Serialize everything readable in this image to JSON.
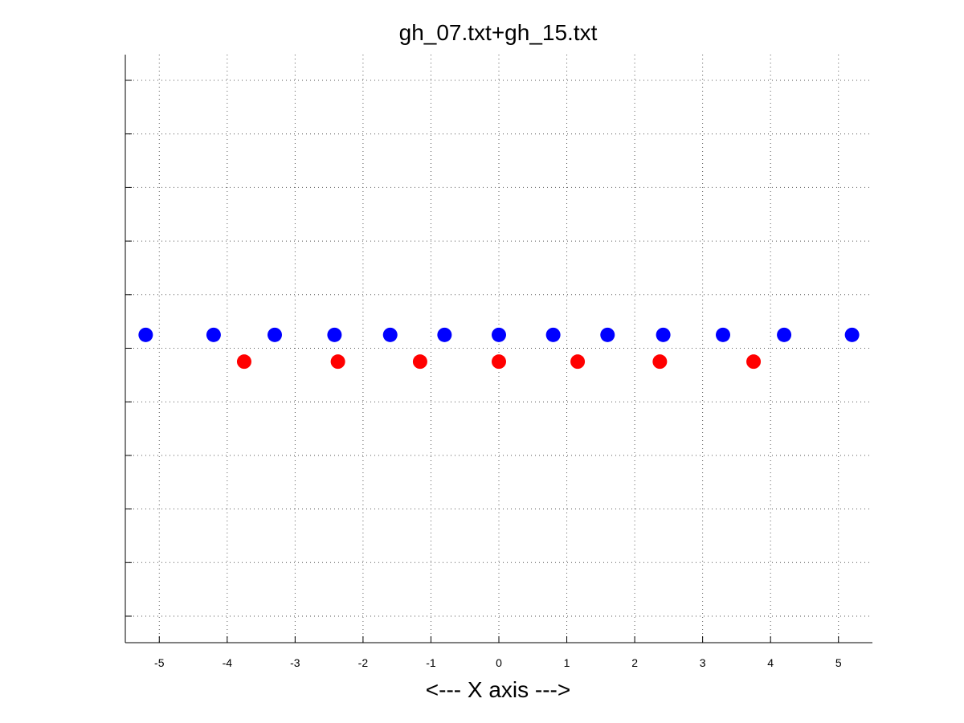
{
  "chart_data": {
    "type": "scatter",
    "title": "gh_07.txt+gh_15.txt",
    "xlabel": "<--- X axis --->",
    "ylabel": "",
    "xlim": [
      -5.5,
      5.5
    ],
    "ylim": [
      -1,
      1
    ],
    "xticks": [
      -5,
      -4,
      -3,
      -2,
      -1,
      0,
      1,
      2,
      3,
      4,
      5
    ],
    "xtick_labels": [
      "-5",
      "-4",
      "-3",
      "-2",
      "-1",
      "0",
      "1",
      "2",
      "3",
      "4",
      "5"
    ],
    "yticks": [
      -1,
      -0.8,
      -0.6,
      -0.4,
      -0.2,
      0,
      0.2,
      0.4,
      0.6,
      0.8,
      1
    ],
    "grid": true,
    "legend": false,
    "series": [
      {
        "color": "#0000ff",
        "y": 0.05,
        "x": [
          -5.2,
          -4.2,
          -3.3,
          -2.42,
          -1.6,
          -0.8,
          0,
          0.8,
          1.6,
          2.42,
          3.3,
          4.2,
          5.2
        ]
      },
      {
        "color": "#ff0000",
        "y": -0.05,
        "x": [
          -3.75,
          -2.37,
          -1.16,
          0,
          1.16,
          2.37,
          3.75
        ]
      }
    ]
  }
}
